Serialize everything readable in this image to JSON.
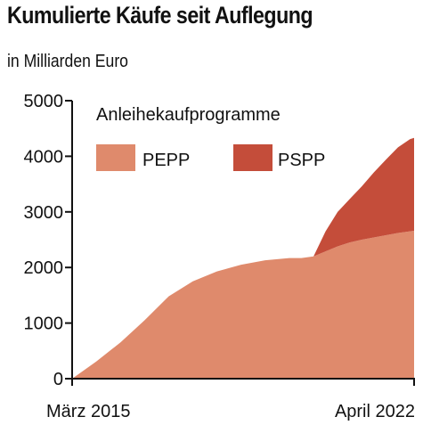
{
  "chart_data": {
    "type": "area",
    "stacked": true,
    "title": "Kumulierte Käufe seit Auflegung",
    "subtitle": "in Milliarden Euro",
    "legend_title": "Anleihekaufprogramme",
    "x_tick_labels": [
      "März 2015",
      "April 2022"
    ],
    "xlim": [
      "2015-03",
      "2022-04"
    ],
    "ylim": [
      0,
      5000
    ],
    "y_ticks": [
      0,
      1000,
      2000,
      3000,
      4000,
      5000
    ],
    "x": [
      "2015-03",
      "2015-09",
      "2016-03",
      "2016-09",
      "2017-03",
      "2017-09",
      "2018-03",
      "2018-09",
      "2019-03",
      "2019-09",
      "2019-12",
      "2020-03",
      "2020-06",
      "2020-09",
      "2020-12",
      "2021-03",
      "2021-06",
      "2021-09",
      "2021-12",
      "2022-03",
      "2022-04"
    ],
    "series": [
      {
        "name": "PEPP",
        "color": "#df8a6c",
        "values": [
          0,
          310,
          650,
          1050,
          1480,
          1750,
          1930,
          2050,
          2130,
          2170,
          2170,
          2200,
          2290,
          2380,
          2450,
          2500,
          2540,
          2580,
          2620,
          2650,
          2660
        ]
      },
      {
        "name": "PSPP",
        "color": "#c44d3a",
        "values": [
          0,
          0,
          0,
          0,
          0,
          0,
          0,
          0,
          0,
          0,
          0,
          0,
          360,
          620,
          780,
          960,
          1170,
          1360,
          1540,
          1660,
          1670
        ]
      }
    ],
    "grid": false,
    "legend_position": "top-left, inside plot"
  }
}
